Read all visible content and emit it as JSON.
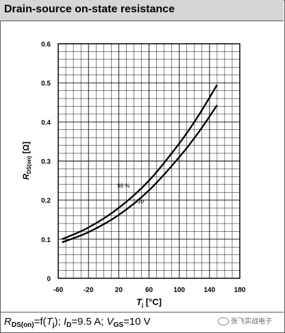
{
  "header": {
    "title": "Drain-source on-state resistance"
  },
  "footer": {
    "r_sym": "R",
    "r_sub": "DS(on)",
    "eq_f": "=f(",
    "tj_sym": "T",
    "tj_sub": "j",
    "sep1": "); ",
    "id_sym": "I",
    "id_sub": "D",
    "id_val": "=9.5 A; ",
    "vgs_sym": "V",
    "vgs_sub": "GS",
    "vgs_val": "=10 V"
  },
  "watermark": {
    "text": "张飞实战电子"
  },
  "chart_data": {
    "type": "line",
    "title": "",
    "xlabel": "T j [°C]",
    "ylabel": "R DS(on) [Ω]",
    "x_ticks": [
      "-60",
      "-20",
      "20",
      "60",
      "100",
      "140",
      "180"
    ],
    "y_ticks": [
      "0",
      "0.1",
      "0.2",
      "0.3",
      "0.4",
      "0.5",
      "0.6"
    ],
    "xlim": [
      -60,
      180
    ],
    "ylim": [
      0,
      0.6
    ],
    "grid": true,
    "series": [
      {
        "name": "98 %",
        "x": [
          -55,
          -20,
          20,
          60,
          100,
          125,
          150
        ],
        "y": [
          0.1,
          0.13,
          0.18,
          0.25,
          0.345,
          0.415,
          0.495
        ]
      },
      {
        "name": "typ",
        "x": [
          -55,
          -20,
          20,
          60,
          100,
          125,
          150
        ],
        "y": [
          0.092,
          0.118,
          0.162,
          0.225,
          0.31,
          0.372,
          0.443
        ]
      }
    ]
  }
}
